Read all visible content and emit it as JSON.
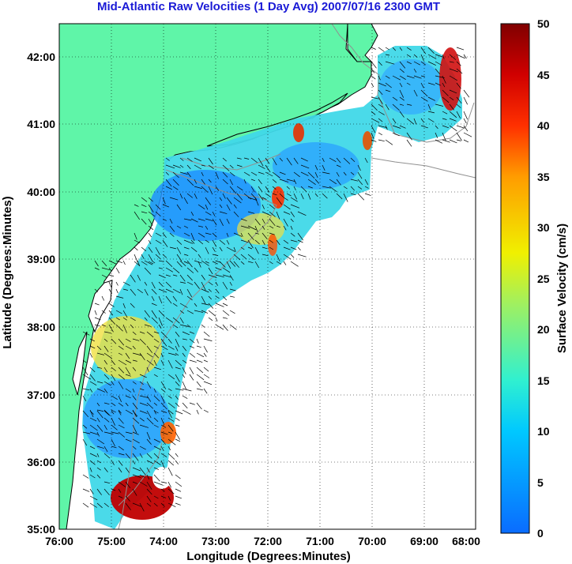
{
  "title": "Mid-Atlantic Raw Velocities (1 Day Avg) 2007/07/16 2300 GMT",
  "x_axis": {
    "label": "Longitude (Degrees:Minutes)",
    "ticks": [
      "76:00",
      "75:00",
      "74:00",
      "73:00",
      "72:00",
      "71:00",
      "70:00",
      "69:00",
      "68:00"
    ]
  },
  "y_axis": {
    "label": "Latitude (Degrees:Minutes)",
    "ticks": [
      "35:00",
      "36:00",
      "37:00",
      "38:00",
      "39:00",
      "40:00",
      "41:00",
      "42:00"
    ]
  },
  "colorbar": {
    "label": "Surface Velocity (cm/s)",
    "ticks": [
      "0",
      "5",
      "10",
      "15",
      "20",
      "25",
      "30",
      "35",
      "40",
      "45",
      "50"
    ],
    "range": [
      0,
      50
    ]
  },
  "colors": {
    "land": "#5ff5a8",
    "title": "#1a1ad6",
    "coastline": "#000000",
    "bathymetry": "#909090"
  },
  "grid": "dotted"
}
